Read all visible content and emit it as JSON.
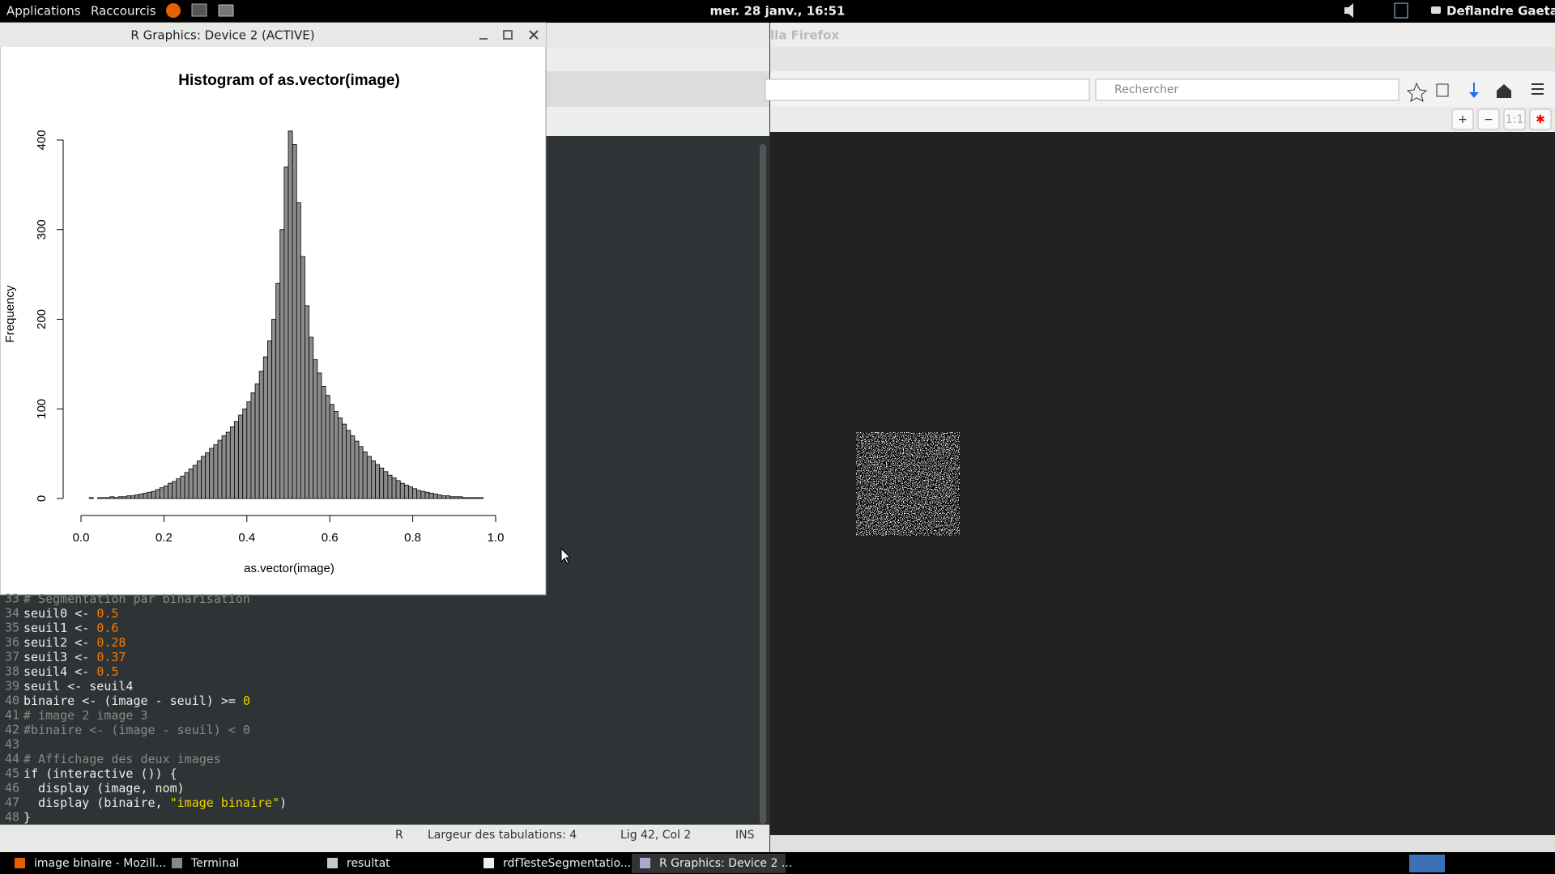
{
  "top_bar": {
    "menus": [
      "Applications",
      "Raccourcis"
    ],
    "clock": "mer. 28 janv., 16:51",
    "user": "Deflandre Gaetan"
  },
  "r_window": {
    "title": "R Graphics: Device 2 (ACTIVE)"
  },
  "chart_data": {
    "type": "histogram",
    "title": "Histogram of as.vector(image)",
    "x_label": "as.vector(image)",
    "y_label": "Frequency",
    "color": "#8c8c8c",
    "bins": [
      0,
      0.01,
      0.02,
      0.03,
      0.04,
      0.05,
      0.06,
      0.07,
      0.08,
      0.09,
      0.1,
      0.11,
      0.12,
      0.13,
      0.14,
      0.15,
      0.16,
      0.17,
      0.18,
      0.19,
      0.2,
      0.21,
      0.22,
      0.23,
      0.24,
      0.25,
      0.26,
      0.27,
      0.28,
      0.29,
      0.3,
      0.31,
      0.32,
      0.33,
      0.34,
      0.35,
      0.36,
      0.37,
      0.38,
      0.39,
      0.4,
      0.41,
      0.42,
      0.43,
      0.44,
      0.45,
      0.46,
      0.47,
      0.48,
      0.49,
      0.5,
      0.51,
      0.52,
      0.53,
      0.54,
      0.55,
      0.56,
      0.57,
      0.58,
      0.59,
      0.6,
      0.61,
      0.62,
      0.63,
      0.64,
      0.65,
      0.66,
      0.67,
      0.68,
      0.69,
      0.7,
      0.71,
      0.72,
      0.73,
      0.74,
      0.75,
      0.76,
      0.77,
      0.78,
      0.79,
      0.8,
      0.81,
      0.82,
      0.83,
      0.84,
      0.85,
      0.86,
      0.87,
      0.88,
      0.89,
      0.9,
      0.91,
      0.92,
      0.93,
      0.94,
      0.95,
      0.96,
      0.97,
      0.98,
      0.99,
      1
    ],
    "counts": [
      0,
      0,
      1,
      0,
      1,
      1,
      1,
      2,
      1,
      2,
      2,
      3,
      3,
      4,
      5,
      6,
      7,
      8,
      10,
      12,
      14,
      17,
      19,
      22,
      25,
      29,
      33,
      37,
      42,
      47,
      51,
      56,
      60,
      65,
      70,
      74,
      80,
      86,
      93,
      100,
      108,
      118,
      128,
      142,
      158,
      176,
      200,
      240,
      300,
      370,
      410,
      395,
      330,
      270,
      215,
      180,
      155,
      140,
      125,
      115,
      105,
      97,
      90,
      83,
      76,
      70,
      64,
      58,
      52,
      47,
      42,
      38,
      34,
      30,
      26,
      23,
      20,
      17,
      15,
      13,
      11,
      9,
      8,
      7,
      6,
      5,
      4,
      3,
      3,
      2,
      2,
      2,
      1,
      1,
      1,
      1,
      1,
      0,
      0,
      0
    ],
    "xlim": [
      0,
      1
    ],
    "ylim": [
      0,
      400
    ],
    "xticks": [
      {
        "value": 0,
        "label": "0.0"
      },
      0.2,
      0.4,
      0.6,
      0.8,
      {
        "value": 1,
        "label": "1.0"
      }
    ],
    "yticks": [
      0,
      100,
      200,
      300,
      400
    ]
  },
  "firefox": {
    "title_fragment": "lla Firefox",
    "search_placeholder": "Rechercher",
    "zoom_buttons": [
      "+",
      "−",
      "1:1",
      "✱"
    ]
  },
  "editor": {
    "lines": [
      {
        "number": 33,
        "tokens": [
          {
            "text": "# Segmentation par binarisation",
            "kind": "comment"
          }
        ]
      },
      {
        "number": 34,
        "tokens": [
          {
            "text": "seuil0 <- ",
            "kind": "code"
          },
          {
            "text": "0.5",
            "kind": "num"
          }
        ]
      },
      {
        "number": 35,
        "tokens": [
          {
            "text": "seuil1 <- ",
            "kind": "code"
          },
          {
            "text": "0.6",
            "kind": "num"
          }
        ]
      },
      {
        "number": 36,
        "tokens": [
          {
            "text": "seuil2 <- ",
            "kind": "code"
          },
          {
            "text": "0.28",
            "kind": "num"
          }
        ]
      },
      {
        "number": 37,
        "tokens": [
          {
            "text": "seuil3 <- ",
            "kind": "code"
          },
          {
            "text": "0.37",
            "kind": "num"
          }
        ]
      },
      {
        "number": 38,
        "tokens": [
          {
            "text": "seuil4 <- ",
            "kind": "code"
          },
          {
            "text": "0.5",
            "kind": "num"
          }
        ]
      },
      {
        "number": 39,
        "tokens": [
          {
            "text": "seuil <- seuil4",
            "kind": "code"
          }
        ]
      },
      {
        "number": 40,
        "tokens": [
          {
            "text": "binaire <- (image - seuil) >= ",
            "kind": "code"
          },
          {
            "text": "0",
            "kind": "lit"
          }
        ]
      },
      {
        "number": 41,
        "tokens": [
          {
            "text": "# image 2 image 3",
            "kind": "comment"
          }
        ]
      },
      {
        "number": 42,
        "tokens": [
          {
            "text": "#binaire <- (image - seuil) < 0",
            "kind": "comment"
          }
        ]
      },
      {
        "number": 43,
        "tokens": []
      },
      {
        "number": 44,
        "tokens": [
          {
            "text": "# Affichage des deux images",
            "kind": "comment"
          }
        ]
      },
      {
        "number": 45,
        "tokens": [
          {
            "text": "if (interactive ()) {",
            "kind": "code"
          }
        ]
      },
      {
        "number": 46,
        "tokens": [
          {
            "text": "  display (image, nom)",
            "kind": "code"
          }
        ]
      },
      {
        "number": 47,
        "tokens": [
          {
            "text": "  display (binaire, ",
            "kind": "code"
          },
          {
            "text": "\"image binaire\"",
            "kind": "lit"
          },
          {
            "text": ")",
            "kind": "code"
          }
        ]
      },
      {
        "number": 48,
        "tokens": [
          {
            "text": "}",
            "kind": "code"
          }
        ]
      }
    ],
    "status": {
      "language": "R",
      "tab_width": "Largeur des tabulations: 4",
      "position": "Lig 42, Col 2",
      "mode": "INS"
    }
  },
  "taskbar": [
    "image binaire - Mozill...",
    "Terminal",
    "resultat",
    "rdfTesteSegmentatio...",
    "R Graphics: Device 2 ..."
  ]
}
